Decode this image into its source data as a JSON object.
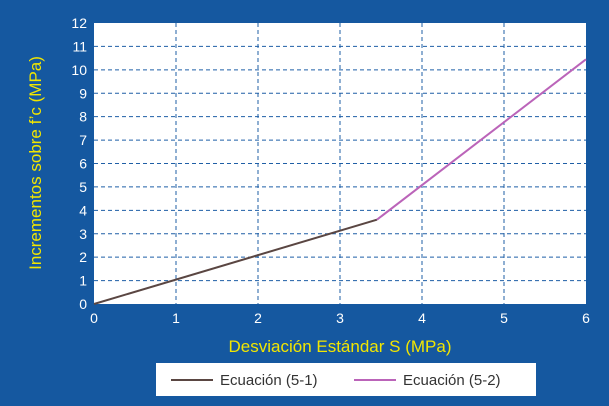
{
  "colors": {
    "background": "#1558a0",
    "plot_area": "#ffffff",
    "grid": "#1f5fa6",
    "axis_text": "#ffffff",
    "label_text": "#f2e600",
    "series_1": "#5a4642",
    "series_2": "#bb64b9"
  },
  "chart_data": {
    "type": "line",
    "xlabel": "Desviación Estándar S (MPa)",
    "ylabel": "Incrementos sobre f’c (MPa)",
    "xlim": [
      0,
      6
    ],
    "ylim": [
      0,
      12
    ],
    "x_ticks": [
      "0",
      "1",
      "2",
      "3",
      "4",
      "5",
      "6"
    ],
    "y_ticks": [
      "0",
      "1",
      "2",
      "3",
      "4",
      "5",
      "6",
      "7",
      "8",
      "9",
      "10",
      "11",
      "12"
    ],
    "grid": true,
    "grid_style": "dashed",
    "legend_position": "bottom",
    "series": [
      {
        "name": "Ecuación (5-1)",
        "color": "#5a4642",
        "x": [
          0,
          3.45
        ],
        "y": [
          0,
          3.6
        ]
      },
      {
        "name": "Ecuación (5-2)",
        "color": "#bb64b9",
        "x": [
          3.45,
          6
        ],
        "y": [
          3.6,
          10.45
        ]
      }
    ]
  }
}
